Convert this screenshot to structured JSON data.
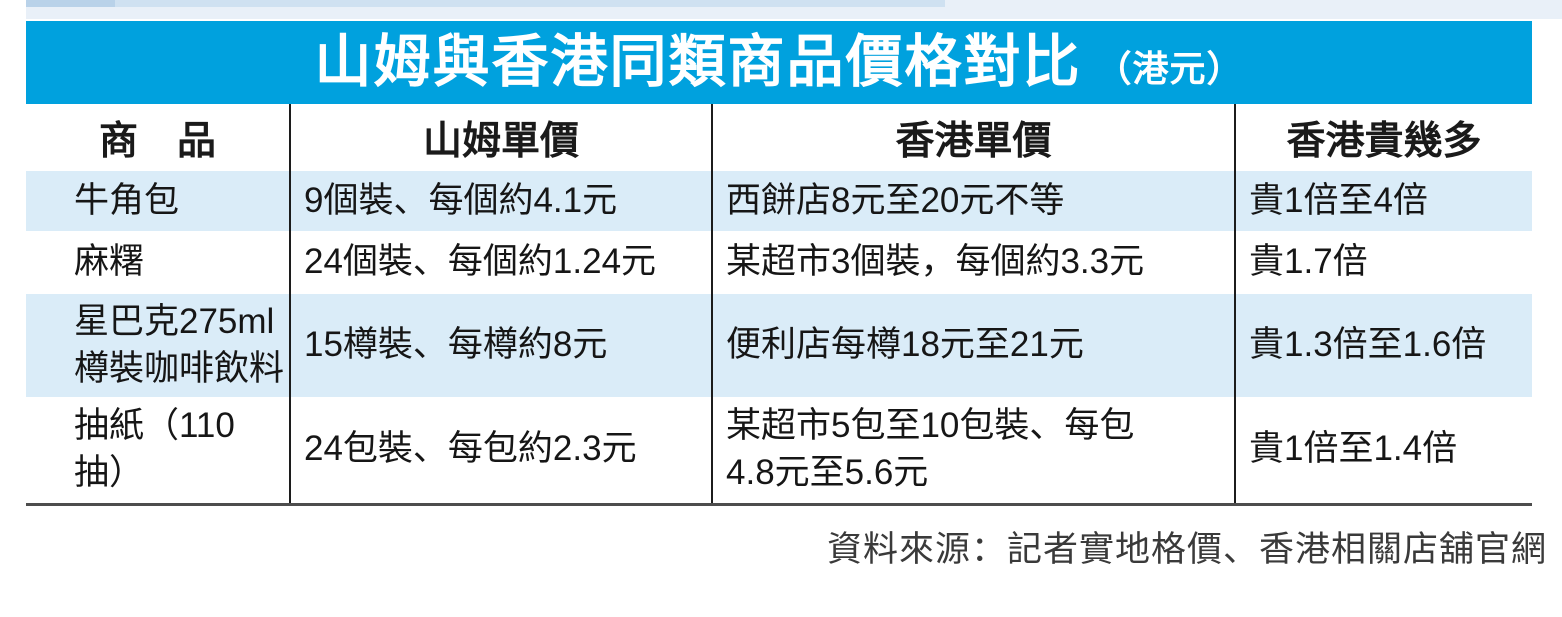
{
  "title": {
    "main": "山姆與香港同類商品價格對比",
    "unit": "（港元）"
  },
  "chart_data": {
    "type": "table",
    "title": "山姆與香港同類商品價格對比（港元）",
    "columns": [
      "商　品",
      "山姆單價",
      "香港單價",
      "香港貴幾多"
    ],
    "rows": [
      [
        "牛角包",
        "9個裝、每個約4.1元",
        "西餅店8元至20元不等",
        "貴1倍至4倍"
      ],
      [
        "麻糬",
        "24個裝、每個約1.24元",
        "某超市3個裝，每個約3.3元",
        "貴1.7倍"
      ],
      [
        "星巴克275ml\n樽裝咖啡飲料",
        "15樽裝、每樽約8元",
        "便利店每樽18元至21元",
        "貴1.3倍至1.6倍"
      ],
      [
        "抽紙（110抽）",
        "24包裝、每包約2.3元",
        "某超市5包至10包裝、每包\n4.8元至5.6元",
        "貴1倍至1.4倍"
      ]
    ],
    "source": "資料來源：記者實地格價、香港相關店舖官網",
    "layout": {
      "grid": false,
      "legend_position": "none"
    }
  },
  "colors": {
    "accent_blue": "#00a1de",
    "row_light_blue": "#daecf8",
    "top_strip_light": "#e9f0f8",
    "top_strip_mid": "#cfe1f1",
    "bottom_rule": "#4d4d4d"
  }
}
